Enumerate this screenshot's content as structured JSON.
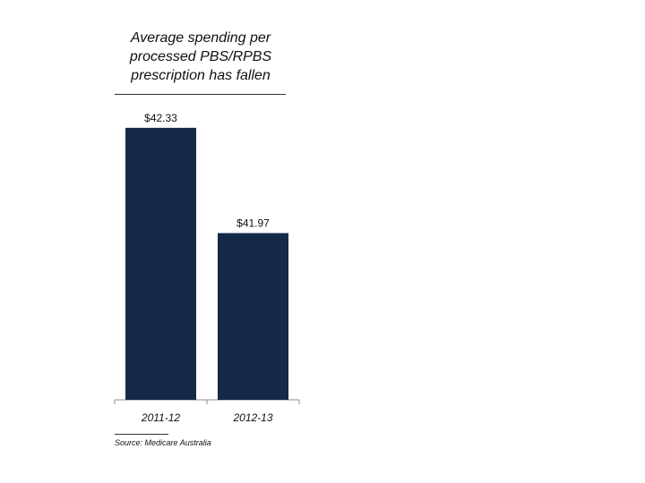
{
  "chart_data": {
    "type": "bar",
    "title": "Average spending per processed PBS/RPBS prescription has fallen",
    "categories": [
      "2011-12",
      "2012-13"
    ],
    "values": [
      42.33,
      41.97
    ],
    "data_labels": [
      "$42.33",
      "$41.97"
    ],
    "xlabel": "",
    "ylabel": "",
    "ylim": [
      41.4,
      42.4
    ],
    "grid": false,
    "legend": "none",
    "bar_color": "#142a47",
    "source": "Source: Medicare Australia"
  }
}
